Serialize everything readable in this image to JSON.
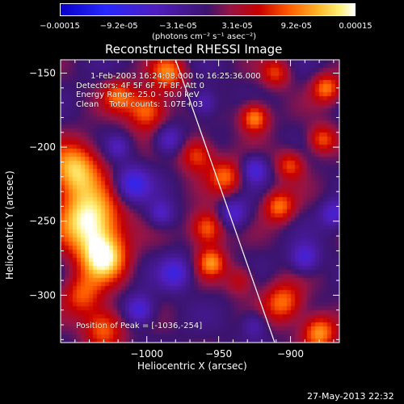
{
  "colorbar": {
    "ticks": [
      "-0.00015",
      "-9.2e-05",
      "-3.1e-05",
      "3.1e-05",
      "9.2e-05",
      "0.00015"
    ],
    "unit": "(photons cm⁻² s⁻¹ asec⁻²)"
  },
  "title": "Reconstructed RHESSI Image",
  "info": {
    "line1": "1-Feb-2003 16:24:08.000 to 16:25:36.000",
    "line2": "Detectors: 4F 5F 6F 7F 8F, Att 0",
    "line3": "Energy Range: 25.0 - 50.0 keV",
    "line4": "Clean    Total counts: 1.07E+03",
    "peak": "Position of Peak = [-1036,-254]"
  },
  "footer_date": "27-May-2013 22:32",
  "chart_data": {
    "type": "heatmap",
    "title": "Reconstructed RHESSI Image",
    "xlabel": "Heliocentric X (arcsec)",
    "ylabel": "Heliocentric Y (arcsec)",
    "xlim": [
      -1060,
      -866
    ],
    "ylim": [
      -332,
      -141
    ],
    "x_ticks": [
      -1000,
      -950,
      -900
    ],
    "x_tick_labels": [
      "−1000",
      "−950",
      "−900"
    ],
    "y_ticks": [
      -150,
      -200,
      -250,
      -300
    ],
    "y_tick_labels": [
      "−150",
      "−200",
      "−250",
      "−300"
    ],
    "value_range": [
      -0.00015,
      0.00015
    ],
    "peak": [
      -1036,
      -254
    ],
    "limb_line": [
      [
        -980,
        -141
      ],
      [
        -911,
        -332
      ]
    ],
    "blobs": [
      {
        "x": -1040,
        "y": -250,
        "v": 1.0,
        "r": 22
      },
      {
        "x": -1050,
        "y": -215,
        "v": 0.8,
        "r": 18
      },
      {
        "x": -1030,
        "y": -275,
        "v": 0.85,
        "r": 16
      },
      {
        "x": -1045,
        "y": -300,
        "v": 0.5,
        "r": 14
      },
      {
        "x": -1030,
        "y": -322,
        "v": 0.6,
        "r": 14
      },
      {
        "x": -1000,
        "y": -175,
        "v": 0.65,
        "r": 14
      },
      {
        "x": -985,
        "y": -150,
        "v": 0.6,
        "r": 12
      },
      {
        "x": -1020,
        "y": -165,
        "v": 0.5,
        "r": 11
      },
      {
        "x": -965,
        "y": -205,
        "v": 0.55,
        "r": 12
      },
      {
        "x": -958,
        "y": -255,
        "v": 0.65,
        "r": 12
      },
      {
        "x": -945,
        "y": -220,
        "v": 0.55,
        "r": 12
      },
      {
        "x": -955,
        "y": -278,
        "v": 0.6,
        "r": 10
      },
      {
        "x": -925,
        "y": -180,
        "v": 0.7,
        "r": 10
      },
      {
        "x": -908,
        "y": -240,
        "v": 0.6,
        "r": 11
      },
      {
        "x": -900,
        "y": -212,
        "v": 0.5,
        "r": 10
      },
      {
        "x": -878,
        "y": -195,
        "v": 0.55,
        "r": 10
      },
      {
        "x": -875,
        "y": -160,
        "v": 0.6,
        "r": 10
      },
      {
        "x": -905,
        "y": -305,
        "v": 0.6,
        "r": 14
      },
      {
        "x": -880,
        "y": -325,
        "v": 0.7,
        "r": 12
      },
      {
        "x": -910,
        "y": -150,
        "v": 0.45,
        "r": 10
      },
      {
        "x": -935,
        "y": -290,
        "v": 0.35,
        "r": 10
      },
      {
        "x": -1010,
        "y": -225,
        "v": -0.6,
        "r": 12
      },
      {
        "x": -985,
        "y": -195,
        "v": -0.45,
        "r": 10
      },
      {
        "x": -980,
        "y": -285,
        "v": -0.5,
        "r": 11
      },
      {
        "x": -1005,
        "y": -310,
        "v": -0.55,
        "r": 10
      },
      {
        "x": -940,
        "y": -245,
        "v": -0.45,
        "r": 10
      },
      {
        "x": -925,
        "y": -215,
        "v": -0.5,
        "r": 9
      },
      {
        "x": -890,
        "y": -275,
        "v": -0.5,
        "r": 10
      },
      {
        "x": -870,
        "y": -245,
        "v": -0.45,
        "r": 9
      },
      {
        "x": -960,
        "y": -170,
        "v": -0.4,
        "r": 9
      },
      {
        "x": -990,
        "y": -245,
        "v": -0.4,
        "r": 9
      },
      {
        "x": -1020,
        "y": -200,
        "v": -0.3,
        "r": 8
      },
      {
        "x": -925,
        "y": -320,
        "v": -0.35,
        "r": 9
      }
    ]
  }
}
